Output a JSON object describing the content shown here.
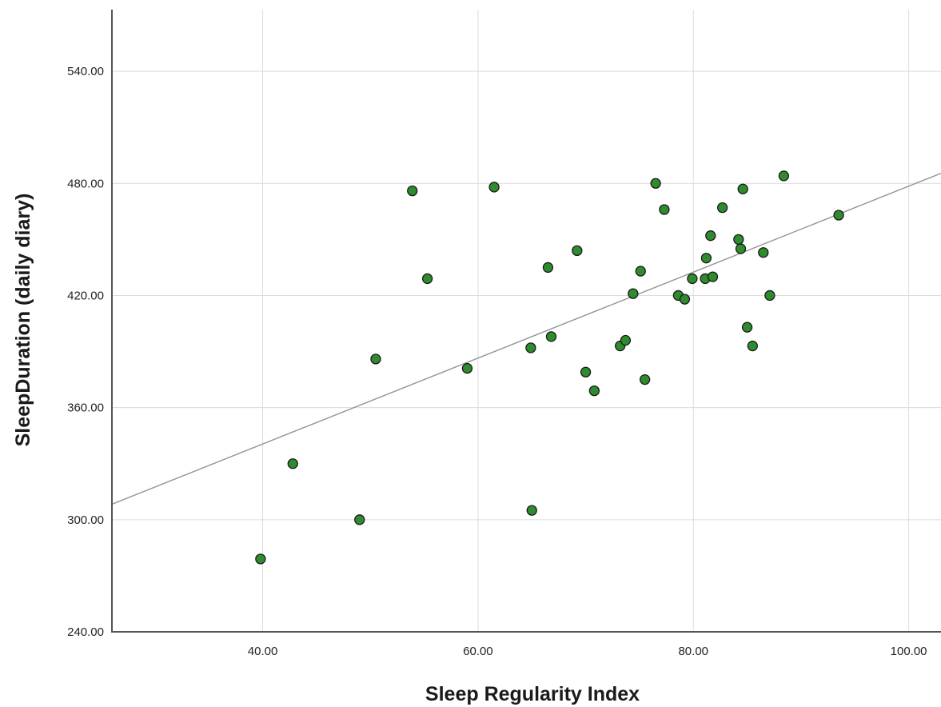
{
  "chart_data": {
    "type": "scatter",
    "xlabel": "Sleep Regularity Index",
    "ylabel": "SleepDuration (daily diary)",
    "xlim": [
      26,
      103
    ],
    "ylim": [
      240,
      573
    ],
    "x_ticks": [
      "40.00",
      "60.00",
      "80.00",
      "100.00"
    ],
    "x_tick_values": [
      40,
      60,
      80,
      100
    ],
    "y_ticks": [
      "240.00",
      "300.00",
      "360.00",
      "420.00",
      "480.00",
      "540.00"
    ],
    "y_tick_values": [
      240,
      300,
      360,
      420,
      480,
      540
    ],
    "grid": true,
    "point_color": "#2e8b2e",
    "point_edge_color": "#1a1a1a",
    "fit_line_color": "#999999",
    "fit_line": {
      "slope": 2.3,
      "intercept": 248.5
    },
    "points": [
      {
        "x": 39.8,
        "y": 279
      },
      {
        "x": 42.8,
        "y": 330
      },
      {
        "x": 49.0,
        "y": 300
      },
      {
        "x": 50.5,
        "y": 386
      },
      {
        "x": 53.9,
        "y": 476
      },
      {
        "x": 55.3,
        "y": 429
      },
      {
        "x": 59.0,
        "y": 381
      },
      {
        "x": 61.5,
        "y": 478
      },
      {
        "x": 64.9,
        "y": 392
      },
      {
        "x": 65.0,
        "y": 305
      },
      {
        "x": 66.5,
        "y": 435
      },
      {
        "x": 66.8,
        "y": 398
      },
      {
        "x": 69.2,
        "y": 444
      },
      {
        "x": 70.0,
        "y": 379
      },
      {
        "x": 70.8,
        "y": 369
      },
      {
        "x": 73.2,
        "y": 393
      },
      {
        "x": 73.7,
        "y": 396
      },
      {
        "x": 74.4,
        "y": 421
      },
      {
        "x": 75.1,
        "y": 433
      },
      {
        "x": 75.5,
        "y": 375
      },
      {
        "x": 76.5,
        "y": 480
      },
      {
        "x": 77.3,
        "y": 466
      },
      {
        "x": 78.6,
        "y": 420
      },
      {
        "x": 79.2,
        "y": 418
      },
      {
        "x": 79.9,
        "y": 429
      },
      {
        "x": 81.1,
        "y": 429
      },
      {
        "x": 81.2,
        "y": 440
      },
      {
        "x": 81.6,
        "y": 452
      },
      {
        "x": 81.8,
        "y": 430
      },
      {
        "x": 82.7,
        "y": 467
      },
      {
        "x": 84.2,
        "y": 450
      },
      {
        "x": 84.4,
        "y": 445
      },
      {
        "x": 84.6,
        "y": 477
      },
      {
        "x": 85.0,
        "y": 403
      },
      {
        "x": 85.5,
        "y": 393
      },
      {
        "x": 86.5,
        "y": 443
      },
      {
        "x": 87.1,
        "y": 420
      },
      {
        "x": 88.4,
        "y": 484
      },
      {
        "x": 93.5,
        "y": 463
      }
    ]
  }
}
